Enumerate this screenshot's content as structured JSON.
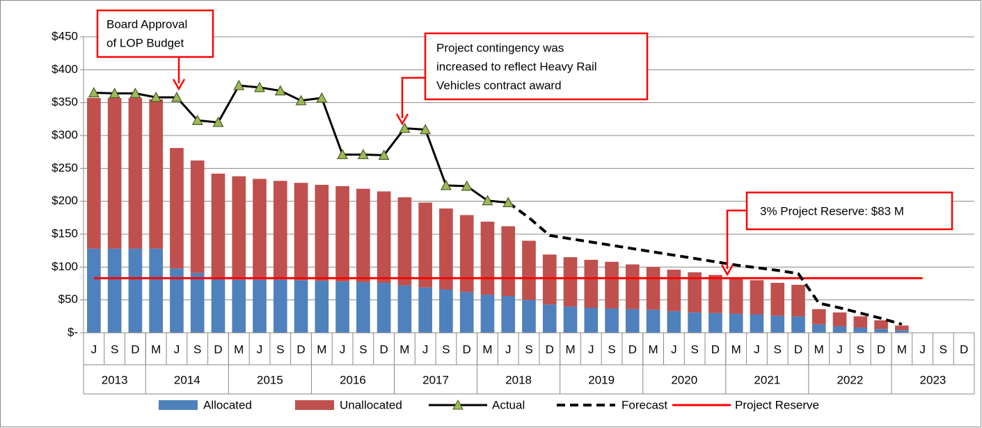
{
  "chart_data": {
    "type": "bar",
    "categories": [
      "J",
      "S",
      "D",
      "M",
      "J",
      "S",
      "D",
      "M",
      "J",
      "S",
      "D",
      "M",
      "J",
      "S",
      "D",
      "M",
      "J",
      "S",
      "D",
      "M",
      "J",
      "S",
      "D",
      "M",
      "J",
      "S",
      "D",
      "M",
      "J",
      "S",
      "D",
      "M",
      "J",
      "S",
      "D",
      "M",
      "J",
      "S",
      "D",
      "M",
      "J",
      "S",
      "D"
    ],
    "category_years": [
      "2013",
      "2013",
      "2013",
      "2014",
      "2014",
      "2014",
      "2014",
      "2015",
      "2015",
      "2015",
      "2015",
      "2016",
      "2016",
      "2016",
      "2016",
      "2017",
      "2017",
      "2017",
      "2017",
      "2018",
      "2018",
      "2018",
      "2018",
      "2019",
      "2019",
      "2019",
      "2019",
      "2020",
      "2020",
      "2020",
      "2020",
      "2021",
      "2021",
      "2021",
      "2021",
      "2022",
      "2022",
      "2022",
      "2022",
      "2023",
      "2023",
      "2023",
      "2023"
    ],
    "ylim": [
      0,
      450
    ],
    "yticks": [
      {
        "value": 0,
        "label": "$-"
      },
      {
        "value": 50,
        "label": "$50"
      },
      {
        "value": 100,
        "label": "$100"
      },
      {
        "value": 150,
        "label": "$150"
      },
      {
        "value": 200,
        "label": "$200"
      },
      {
        "value": 250,
        "label": "$250"
      },
      {
        "value": 300,
        "label": "$300"
      },
      {
        "value": 350,
        "label": "$350"
      },
      {
        "value": 400,
        "label": "$400"
      },
      {
        "value": 450,
        "label": "$450"
      }
    ],
    "grid": true,
    "stacked": true,
    "series": [
      {
        "name": "Allocated",
        "color": "#4f81bd",
        "kind": "bar",
        "values": [
          128,
          128,
          128,
          128,
          98,
          91,
          82,
          81,
          81,
          81,
          80,
          79,
          78,
          77,
          76,
          72,
          69,
          66,
          62,
          58,
          56,
          50,
          43,
          40,
          38,
          37,
          36,
          35,
          33,
          31,
          30,
          29,
          28,
          26,
          25,
          13,
          10,
          8,
          6,
          4,
          null,
          null,
          null
        ]
      },
      {
        "name": "Unallocated",
        "color": "#c0504d",
        "kind": "bar",
        "values": [
          229,
          229,
          229,
          227,
          183,
          171,
          160,
          157,
          153,
          150,
          148,
          146,
          145,
          142,
          139,
          134,
          129,
          123,
          117,
          111,
          106,
          90,
          76,
          75,
          73,
          71,
          68,
          65,
          63,
          61,
          58,
          55,
          52,
          50,
          48,
          23,
          21,
          17,
          13,
          7,
          null,
          null,
          null
        ]
      },
      {
        "name": "Actual",
        "color": "#000000",
        "kind": "line",
        "marker": "triangle",
        "marker_color": "#9bbb59",
        "values": [
          365,
          364,
          364,
          358,
          358,
          323,
          320,
          376,
          373,
          368,
          353,
          357,
          271,
          271,
          270,
          311,
          309,
          224,
          223,
          201,
          198,
          null,
          null,
          null,
          null,
          null,
          null,
          null,
          null,
          null,
          null,
          null,
          null,
          null,
          null,
          null,
          null,
          null,
          null,
          null,
          null,
          null,
          null
        ]
      },
      {
        "name": "Forecast",
        "color": "#000000",
        "kind": "line",
        "dash": true,
        "values": [
          null,
          null,
          null,
          null,
          null,
          null,
          null,
          null,
          null,
          null,
          null,
          null,
          null,
          null,
          null,
          null,
          null,
          null,
          null,
          null,
          198,
          175,
          148,
          143,
          138,
          133,
          128,
          123,
          118,
          113,
          108,
          103,
          99,
          95,
          90,
          45,
          38,
          30,
          22,
          13,
          null,
          null,
          null
        ]
      },
      {
        "name": "Project Reserve",
        "color": "#ff0000",
        "kind": "line",
        "values": [
          83,
          83,
          83,
          83,
          83,
          83,
          83,
          83,
          83,
          83,
          83,
          83,
          83,
          83,
          83,
          83,
          83,
          83,
          83,
          83,
          83,
          83,
          83,
          83,
          83,
          83,
          83,
          83,
          83,
          83,
          83,
          83,
          83,
          83,
          83,
          83,
          83,
          83,
          83,
          83,
          83,
          null,
          null
        ]
      }
    ],
    "annotations": [
      [
        "Board Approval",
        "of LOP Budget"
      ],
      [
        "Project contingency was",
        "increased to reflect Heavy Rail",
        "Vehicles contract award"
      ],
      [
        "3% Project Reserve:  $83 M"
      ]
    ]
  }
}
